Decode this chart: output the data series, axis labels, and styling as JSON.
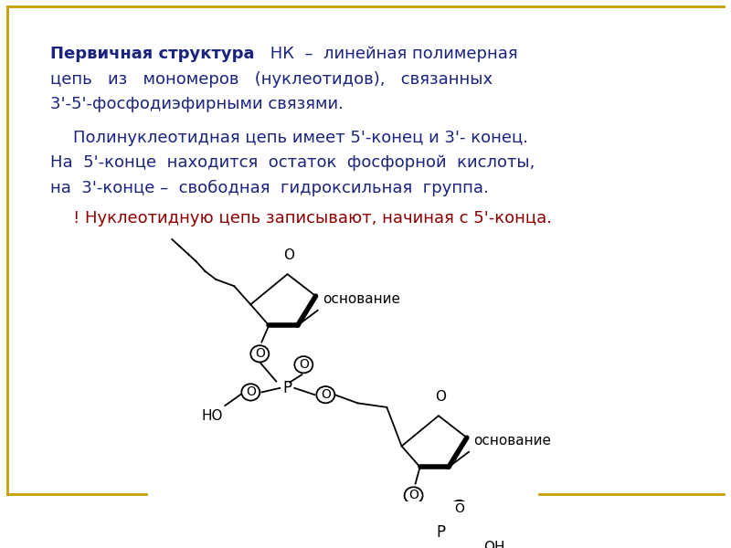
{
  "bg_color": "#ffffff",
  "border_color": "#c8a000",
  "text_color_dark": "#1a237e",
  "text_color_red": "#8b0000",
  "para3": "! Нуклеотидную цепь записывают, начиная с 5'-конца.",
  "label_osnov1": "основание",
  "label_osnov2": "основание",
  "label_HO": "HO",
  "label_OH": "OH",
  "label_P": "P",
  "label_O": "O"
}
